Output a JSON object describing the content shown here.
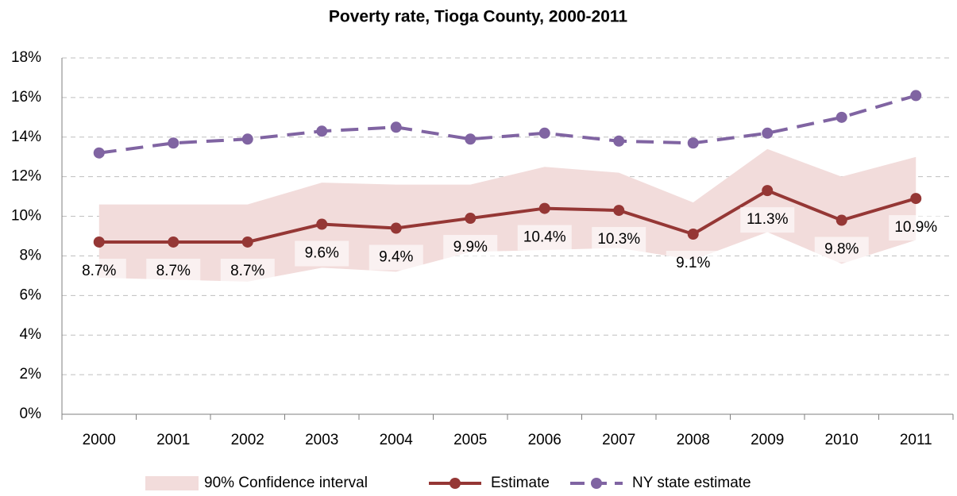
{
  "chart_data": {
    "type": "line",
    "title": "Poverty rate, Tioga County, 2000-2011",
    "categories": [
      "2000",
      "2001",
      "2002",
      "2003",
      "2004",
      "2005",
      "2006",
      "2007",
      "2008",
      "2009",
      "2010",
      "2011"
    ],
    "band": {
      "name": "90% Confidence interval",
      "color": "#f2dcdb",
      "upper": [
        10.6,
        10.6,
        10.6,
        11.7,
        11.6,
        11.6,
        12.5,
        12.2,
        10.7,
        13.4,
        12.0,
        13.0
      ],
      "lower": [
        6.9,
        6.8,
        6.7,
        7.4,
        7.2,
        8.2,
        8.3,
        8.4,
        7.8,
        9.2,
        7.6,
        8.8
      ]
    },
    "series": [
      {
        "name": "Estimate",
        "color": "#953735",
        "dashed": false,
        "values": [
          8.7,
          8.7,
          8.7,
          9.6,
          9.4,
          9.9,
          10.4,
          10.3,
          9.1,
          11.3,
          9.8,
          10.9
        ],
        "value_labels": [
          "8.7%",
          "8.7%",
          "8.7%",
          "9.6%",
          "9.4%",
          "9.9%",
          "10.4%",
          "10.3%",
          "9.1%",
          "11.3%",
          "9.8%",
          "10.9%"
        ]
      },
      {
        "name": "NY state estimate",
        "color": "#8064a2",
        "dashed": true,
        "values": [
          13.2,
          13.7,
          13.9,
          14.3,
          14.5,
          13.9,
          14.2,
          13.8,
          13.7,
          14.2,
          15.0,
          16.1
        ]
      }
    ],
    "ylim": [
      0,
      18
    ],
    "yticks": [
      {
        "value": 0,
        "label": "0%"
      },
      {
        "value": 2,
        "label": "2%"
      },
      {
        "value": 4,
        "label": "4%"
      },
      {
        "value": 6,
        "label": "6%"
      },
      {
        "value": 8,
        "label": "8%"
      },
      {
        "value": 10,
        "label": "10%"
      },
      {
        "value": 12,
        "label": "12%"
      },
      {
        "value": 14,
        "label": "14%"
      },
      {
        "value": 16,
        "label": "16%"
      },
      {
        "value": 18,
        "label": "18%"
      }
    ],
    "grid": true
  }
}
